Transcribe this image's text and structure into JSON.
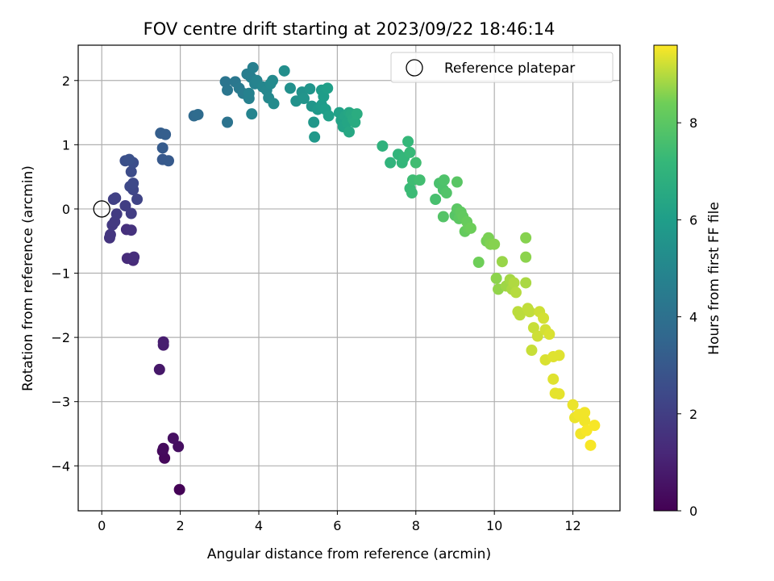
{
  "chart_data": {
    "type": "scatter",
    "title": "FOV centre drift starting at 2023/09/22 18:46:14",
    "xlabel": "Angular distance from reference (arcmin)",
    "ylabel": "Rotation from reference (arcmin)",
    "xlim": [
      -0.6,
      13.2
    ],
    "ylim": [
      -4.7,
      2.55
    ],
    "x_ticks": [
      0,
      2,
      4,
      6,
      8,
      10,
      12
    ],
    "y_ticks": [
      -4,
      -3,
      -2,
      -1,
      0,
      1,
      2
    ],
    "y_tick_labels": [
      "−4",
      "−3",
      "−2",
      "−1",
      "0",
      "1",
      "2"
    ],
    "grid": true,
    "legend": {
      "position": "top-right",
      "entries": [
        "Reference platepar"
      ]
    },
    "reference_point": {
      "x": 0,
      "y": 0,
      "label": "Reference platepar"
    },
    "colorbar": {
      "label": "Hours from first FF file",
      "range": [
        0,
        9.6
      ],
      "ticks": [
        0,
        2,
        4,
        6,
        8
      ],
      "colormap": "viridis"
    },
    "points": [
      [
        1.98,
        -4.37,
        0.05
      ],
      [
        1.6,
        -3.88,
        0.2
      ],
      [
        1.55,
        -3.77,
        0.25
      ],
      [
        1.57,
        -3.73,
        0.3
      ],
      [
        1.95,
        -3.7,
        0.4
      ],
      [
        1.82,
        -3.57,
        0.45
      ],
      [
        1.47,
        -2.5,
        0.7
      ],
      [
        1.57,
        -2.12,
        0.85
      ],
      [
        1.57,
        -2.07,
        0.9
      ],
      [
        0.8,
        -0.8,
        1.3
      ],
      [
        0.65,
        -0.77,
        1.35
      ],
      [
        0.82,
        -0.75,
        1.4
      ],
      [
        0.63,
        -0.32,
        1.5
      ],
      [
        0.75,
        -0.33,
        1.55
      ],
      [
        0.2,
        -0.45,
        1.65
      ],
      [
        0.22,
        -0.4,
        1.7
      ],
      [
        0.27,
        -0.25,
        1.8
      ],
      [
        0.33,
        -0.2,
        1.85
      ],
      [
        0.38,
        -0.08,
        1.9
      ],
      [
        0.75,
        -0.07,
        1.95
      ],
      [
        0.6,
        0.05,
        2.0
      ],
      [
        0.3,
        0.15,
        2.05
      ],
      [
        0.35,
        0.17,
        2.1
      ],
      [
        0.9,
        0.15,
        2.2
      ],
      [
        0.8,
        0.3,
        2.3
      ],
      [
        0.72,
        0.35,
        2.35
      ],
      [
        0.8,
        0.4,
        2.4
      ],
      [
        0.75,
        0.58,
        2.5
      ],
      [
        0.8,
        0.72,
        2.6
      ],
      [
        0.6,
        0.75,
        2.65
      ],
      [
        0.7,
        0.77,
        2.7
      ],
      [
        1.55,
        0.77,
        3.0
      ],
      [
        1.7,
        0.75,
        3.05
      ],
      [
        1.55,
        0.95,
        3.1
      ],
      [
        1.5,
        1.18,
        3.2
      ],
      [
        1.62,
        1.16,
        3.25
      ],
      [
        2.35,
        1.45,
        3.7
      ],
      [
        2.45,
        1.47,
        3.8
      ],
      [
        3.2,
        1.35,
        4.1
      ],
      [
        3.15,
        1.98,
        4.2
      ],
      [
        3.2,
        1.85,
        4.25
      ],
      [
        3.4,
        1.98,
        4.3
      ],
      [
        3.5,
        1.88,
        4.4
      ],
      [
        3.6,
        1.8,
        4.5
      ],
      [
        3.7,
        2.1,
        4.55
      ],
      [
        3.8,
        2.05,
        4.6
      ],
      [
        3.85,
        2.2,
        4.65
      ],
      [
        3.75,
        1.72,
        4.7
      ],
      [
        3.75,
        1.8,
        4.75
      ],
      [
        3.9,
        1.95,
        4.8
      ],
      [
        3.95,
        2.0,
        4.85
      ],
      [
        3.82,
        1.48,
        4.9
      ],
      [
        4.1,
        1.9,
        4.95
      ],
      [
        4.2,
        1.85,
        5.0
      ],
      [
        4.25,
        1.73,
        5.05
      ],
      [
        4.3,
        1.95,
        5.1
      ],
      [
        4.35,
        2.0,
        5.15
      ],
      [
        4.38,
        1.64,
        5.2
      ],
      [
        4.65,
        2.15,
        5.3
      ],
      [
        4.8,
        1.88,
        5.4
      ],
      [
        4.95,
        1.68,
        5.45
      ],
      [
        5.1,
        1.82,
        5.5
      ],
      [
        5.15,
        1.72,
        5.55
      ],
      [
        5.3,
        1.87,
        5.6
      ],
      [
        5.35,
        1.6,
        5.65
      ],
      [
        5.4,
        1.35,
        5.7
      ],
      [
        5.42,
        1.12,
        5.75
      ],
      [
        5.5,
        1.55,
        5.8
      ],
      [
        5.6,
        1.62,
        5.85
      ],
      [
        5.6,
        1.85,
        5.9
      ],
      [
        5.65,
        1.75,
        5.95
      ],
      [
        5.7,
        1.55,
        6.0
      ],
      [
        5.75,
        1.88,
        6.05
      ],
      [
        5.78,
        1.45,
        6.1
      ],
      [
        6.05,
        1.5,
        6.15
      ],
      [
        6.1,
        1.38,
        6.2
      ],
      [
        6.15,
        1.28,
        6.25
      ],
      [
        6.2,
        1.45,
        6.3
      ],
      [
        6.25,
        1.35,
        6.35
      ],
      [
        6.3,
        1.5,
        6.4
      ],
      [
        6.3,
        1.2,
        6.45
      ],
      [
        6.35,
        1.48,
        6.5
      ],
      [
        6.4,
        1.4,
        6.55
      ],
      [
        6.45,
        1.35,
        6.6
      ],
      [
        6.5,
        1.48,
        6.65
      ],
      [
        7.15,
        0.98,
        6.9
      ],
      [
        7.35,
        0.72,
        7.0
      ],
      [
        7.55,
        0.85,
        7.05
      ],
      [
        7.65,
        0.72,
        7.1
      ],
      [
        7.7,
        0.8,
        7.15
      ],
      [
        7.8,
        1.05,
        7.2
      ],
      [
        7.85,
        0.88,
        7.25
      ],
      [
        7.85,
        0.32,
        7.3
      ],
      [
        7.9,
        0.25,
        7.35
      ],
      [
        7.92,
        0.45,
        7.4
      ],
      [
        8.0,
        0.72,
        7.45
      ],
      [
        8.1,
        0.45,
        7.5
      ],
      [
        8.5,
        0.15,
        7.6
      ],
      [
        8.6,
        0.4,
        7.65
      ],
      [
        8.7,
        0.3,
        7.7
      ],
      [
        8.72,
        0.45,
        7.75
      ],
      [
        8.78,
        0.25,
        7.8
      ],
      [
        8.7,
        -0.12,
        7.85
      ],
      [
        9.0,
        -0.1,
        7.9
      ],
      [
        9.05,
        0.42,
        7.95
      ],
      [
        9.05,
        0.0,
        8.0
      ],
      [
        9.1,
        -0.15,
        8.05
      ],
      [
        9.15,
        -0.05,
        8.1
      ],
      [
        9.2,
        -0.12,
        8.15
      ],
      [
        9.25,
        -0.35,
        8.2
      ],
      [
        9.3,
        -0.2,
        8.25
      ],
      [
        9.35,
        -0.3,
        8.3
      ],
      [
        9.4,
        -0.3,
        8.35
      ],
      [
        9.6,
        -0.83,
        8.4
      ],
      [
        9.8,
        -0.5,
        8.45
      ],
      [
        9.85,
        -0.45,
        8.5
      ],
      [
        9.9,
        -0.55,
        8.55
      ],
      [
        10.0,
        -0.55,
        8.6
      ],
      [
        10.05,
        -1.08,
        8.65
      ],
      [
        10.1,
        -1.25,
        8.7
      ],
      [
        10.2,
        -0.82,
        8.75
      ],
      [
        10.3,
        -1.2,
        8.8
      ],
      [
        10.4,
        -1.1,
        8.85
      ],
      [
        10.45,
        -1.25,
        8.9
      ],
      [
        10.5,
        -1.15,
        8.95
      ],
      [
        10.55,
        -1.3,
        9.0
      ],
      [
        10.6,
        -1.6,
        9.05
      ],
      [
        10.65,
        -1.65,
        9.05
      ],
      [
        10.8,
        -0.45,
        8.6
      ],
      [
        10.8,
        -0.75,
        8.65
      ],
      [
        10.8,
        -1.15,
        8.9
      ],
      [
        10.85,
        -1.55,
        9.1
      ],
      [
        10.9,
        -1.6,
        9.1
      ],
      [
        10.95,
        -2.2,
        9.15
      ],
      [
        11.0,
        -1.85,
        9.15
      ],
      [
        11.1,
        -1.98,
        9.2
      ],
      [
        11.15,
        -1.6,
        9.2
      ],
      [
        11.25,
        -1.7,
        9.25
      ],
      [
        11.3,
        -1.88,
        9.25
      ],
      [
        11.3,
        -2.35,
        9.3
      ],
      [
        11.4,
        -1.95,
        9.3
      ],
      [
        11.5,
        -2.3,
        9.35
      ],
      [
        11.5,
        -2.65,
        9.35
      ],
      [
        11.55,
        -2.87,
        9.4
      ],
      [
        11.65,
        -2.88,
        9.4
      ],
      [
        11.65,
        -2.28,
        9.35
      ],
      [
        12.0,
        -3.05,
        9.45
      ],
      [
        12.05,
        -3.25,
        9.45
      ],
      [
        12.15,
        -3.2,
        9.5
      ],
      [
        12.2,
        -3.5,
        9.5
      ],
      [
        12.3,
        -3.3,
        9.5
      ],
      [
        12.3,
        -3.17,
        9.5
      ],
      [
        12.35,
        -3.45,
        9.55
      ],
      [
        12.45,
        -3.68,
        9.55
      ],
      [
        12.55,
        -3.37,
        9.55
      ]
    ]
  }
}
